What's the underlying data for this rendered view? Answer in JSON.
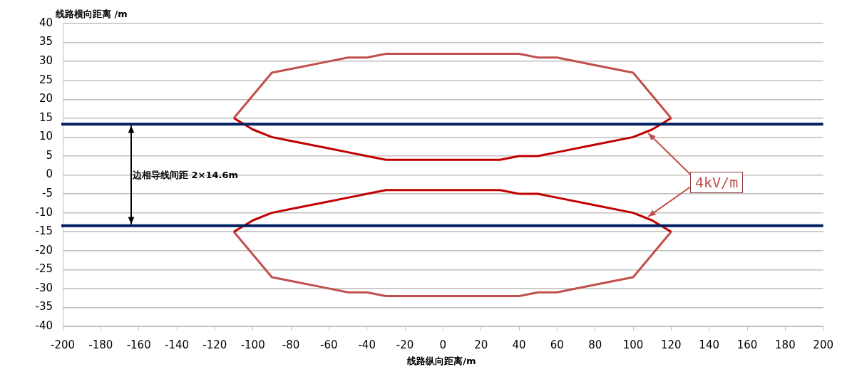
{
  "chart_data": {
    "type": "line",
    "xlabel": "线路纵向距离/m",
    "ylabel": "线路横向距离 /m",
    "xlim": [
      -200,
      200
    ],
    "xticks": [
      -200,
      -180,
      -160,
      -140,
      -120,
      -100,
      -80,
      -60,
      -40,
      -20,
      0,
      20,
      40,
      60,
      80,
      100,
      120,
      140,
      160,
      180,
      200
    ],
    "ylim": [
      -40,
      40
    ],
    "yticks": [
      -40,
      -35,
      -30,
      -25,
      -20,
      -15,
      -10,
      -5,
      0,
      5,
      10,
      15,
      20,
      25,
      30,
      35,
      40
    ],
    "grid": "y",
    "legend": false,
    "marker": "none",
    "line_style": "solid",
    "series": [
      {
        "color": "#c0504d",
        "x": [
          -110,
          -90,
          -80,
          -60,
          -50,
          -40,
          -30,
          40,
          50,
          60,
          80,
          100,
          120
        ],
        "values": [
          15,
          27,
          28,
          30,
          31,
          31,
          32,
          32,
          31,
          31,
          29,
          27,
          15
        ]
      },
      {
        "color": "#c00000",
        "x": [
          -110,
          -100,
          -90,
          -80,
          -60,
          -50,
          -40,
          -30,
          30,
          40,
          50,
          60,
          80,
          100,
          110,
          120
        ],
        "values": [
          15,
          12,
          10,
          9,
          7,
          6,
          5,
          4,
          4,
          5,
          5,
          6,
          8,
          10,
          12,
          15
        ]
      },
      {
        "color": "#c00000",
        "x": [
          -110,
          -100,
          -90,
          -80,
          -60,
          -50,
          -40,
          -30,
          30,
          40,
          50,
          60,
          80,
          100,
          110,
          120
        ],
        "values": [
          -15,
          -12,
          -10,
          -9,
          -7,
          -6,
          -5,
          -4,
          -4,
          -5,
          -5,
          -6,
          -8,
          -10,
          -12,
          -15
        ]
      },
      {
        "color": "#c0504d",
        "x": [
          -110,
          -90,
          -80,
          -60,
          -50,
          -40,
          -30,
          40,
          50,
          60,
          80,
          100,
          120
        ],
        "values": [
          -15,
          -27,
          -28,
          -30,
          -31,
          -31,
          -32,
          -32,
          -31,
          -31,
          -29,
          -27,
          -15
        ]
      }
    ],
    "ref_lines": [
      {
        "axis": "y",
        "value": 13.4,
        "color": "#002060"
      },
      {
        "axis": "y",
        "value": -13.4,
        "color": "#002060"
      }
    ],
    "annotations": [
      "边相导线间距 2×14.6m",
      {
        "text": "4kV/m",
        "x": 108,
        "y": 11
      }
    ]
  }
}
